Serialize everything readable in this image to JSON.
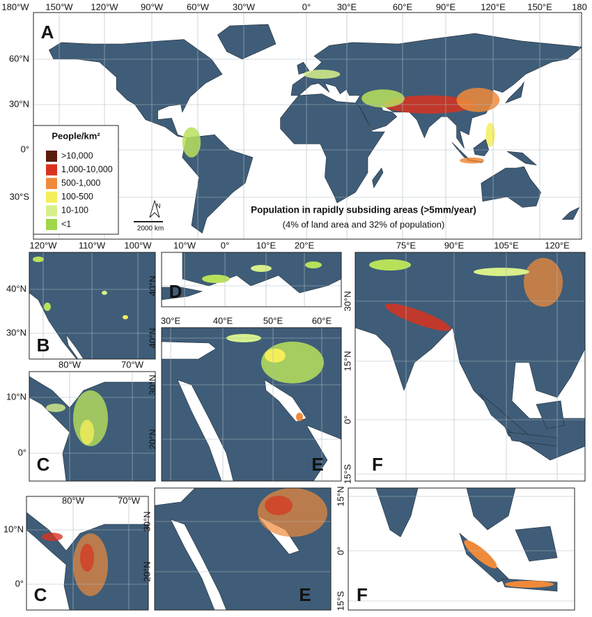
{
  "panels": [
    {
      "label": "A",
      "lon_labels": [
        "180°W",
        "150°W",
        "120°W",
        "90°W",
        "60°W",
        "30°W",
        "0°",
        "30°E",
        "60°E",
        "90°E",
        "120°E",
        "150°E",
        "180"
      ],
      "lat_labels": [
        "60°N",
        "30°N",
        "0°",
        "30°S"
      ]
    },
    {
      "label": "B",
      "lon_labels": [
        "120°W",
        "110°W",
        "100°W"
      ],
      "lat_labels": [
        "40°N",
        "30°N"
      ]
    },
    {
      "label": "C",
      "lon_labels": [
        "80°W",
        "70°W"
      ],
      "lat_labels": [
        "10°N",
        "0°"
      ]
    },
    {
      "label": "D",
      "lon_labels": [
        "10°W",
        "0°",
        "10°E",
        "20°E"
      ],
      "lat_labels": [
        "40°N"
      ]
    },
    {
      "label": "E",
      "lon_labels": [
        "30°E",
        "40°E",
        "50°E",
        "60°E"
      ],
      "lat_labels": [
        "40°N",
        "30°N",
        "20°N"
      ]
    },
    {
      "label": "F",
      "lon_labels": [
        "75°E",
        "90°E",
        "105°E",
        "120°E"
      ],
      "lat_labels": [
        "30°N",
        "15°N",
        "0°",
        "15°S"
      ]
    },
    {
      "label": "C",
      "lon_labels": [
        "80°W",
        "70°W"
      ],
      "lat_labels": [
        "10°N",
        "0°"
      ]
    },
    {
      "label": "E",
      "lon_labels": [],
      "lat_labels": [
        "30°N",
        "20°N"
      ]
    },
    {
      "label": "F",
      "lon_labels": [],
      "lat_labels": [
        "15°N",
        "0°",
        "15°S"
      ]
    }
  ],
  "legend": {
    "title": "People/km²",
    "items": [
      {
        "label": ">10,000",
        "color": "#5b1a0e"
      },
      {
        "label": "1,000-10,000",
        "color": "#d8331f"
      },
      {
        "label": "500-1,000",
        "color": "#ef8a3a"
      },
      {
        "label": "100-500",
        "color": "#f4ee5a"
      },
      {
        "label": "10-100",
        "color": "#d7f08a"
      },
      {
        "label": "<1",
        "color": "#9fd64a"
      }
    ]
  },
  "north": "N",
  "scale_bar": "2000 km",
  "caption": {
    "title": "Population in rapidly subsiding areas (>5mm/year)",
    "subtitle": "(4% of land area and 32% of population)"
  }
}
